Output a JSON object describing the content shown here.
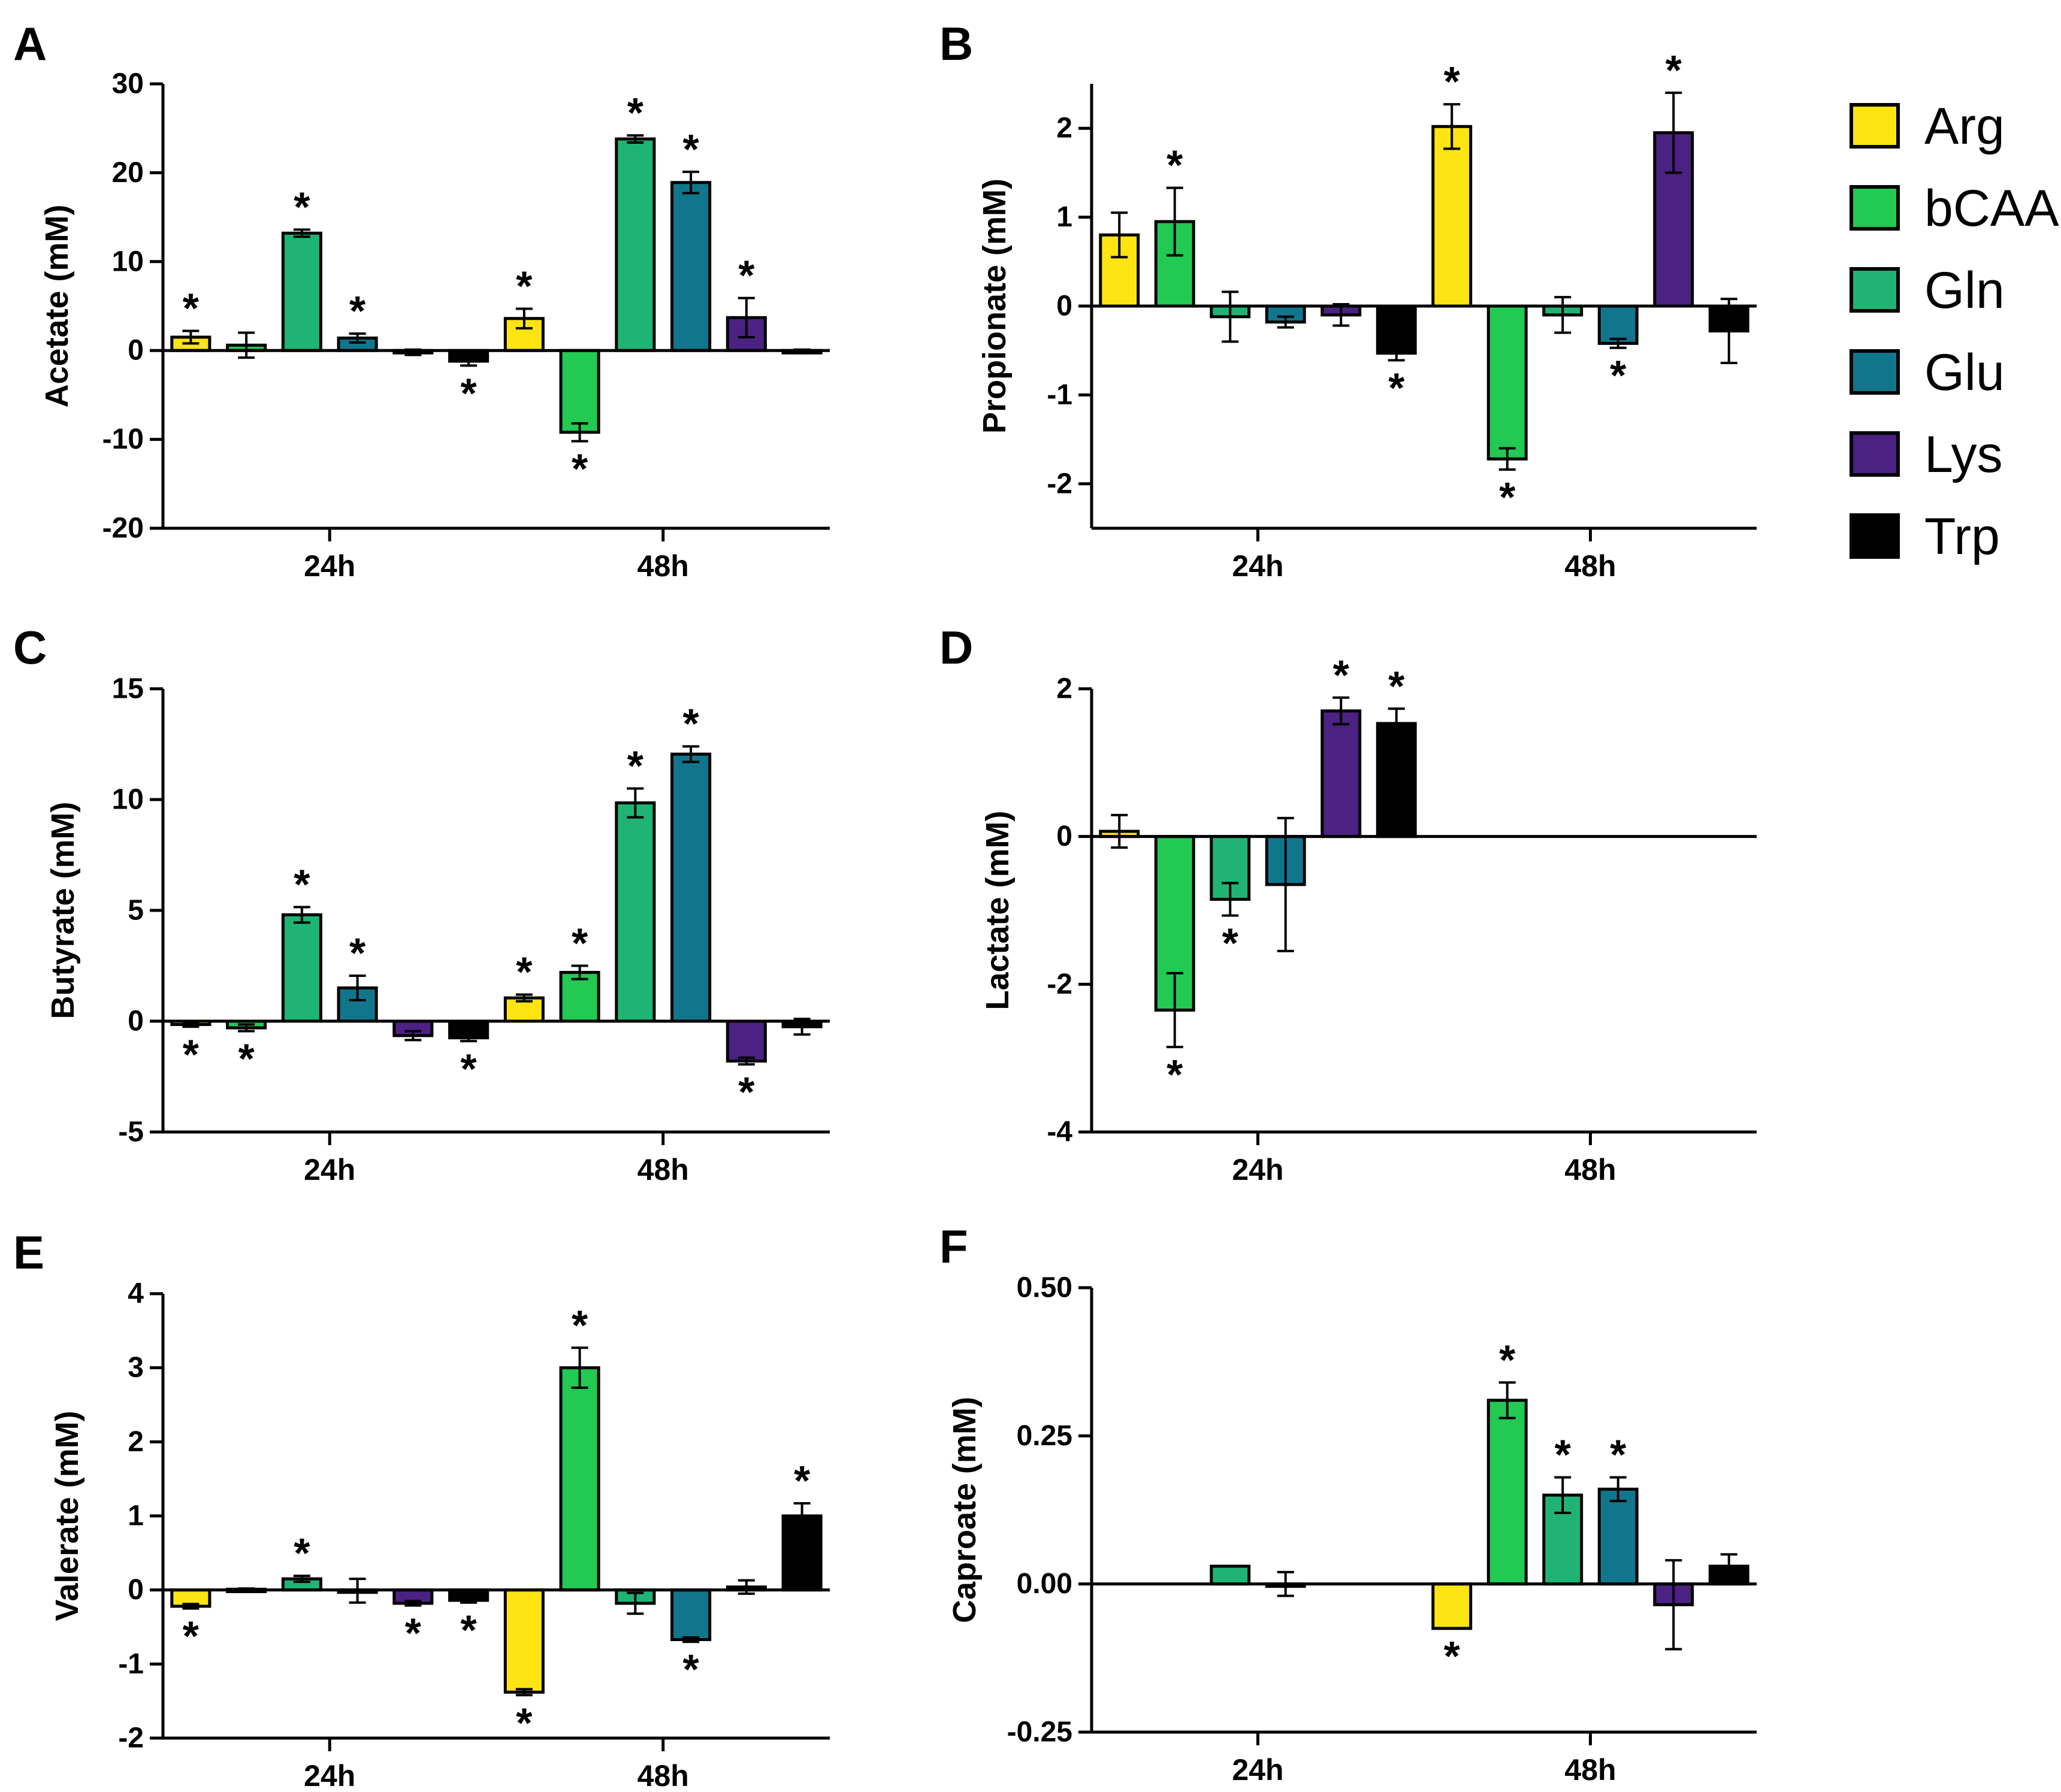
{
  "legend": [
    {
      "name": "Arg",
      "color": "#ffe414"
    },
    {
      "name": "bCAA",
      "color": "#22c953"
    },
    {
      "name": "Gln",
      "color": "#1fb474"
    },
    {
      "name": "Glu",
      "color": "#11768c"
    },
    {
      "name": "Lys",
      "color": "#4b2182"
    },
    {
      "name": "Trp",
      "color": "#000000"
    }
  ],
  "chart_data": [
    {
      "id": "A",
      "letter": "A",
      "type": "bar",
      "ylabel": "Acetate (mM)",
      "ylim": [
        -20,
        30
      ],
      "ticks": [
        30,
        20,
        10,
        0,
        -10,
        -20
      ],
      "tick_labels": [
        "30",
        "20",
        "10",
        "0",
        "-10",
        "-20"
      ],
      "groups": [
        "24h",
        "48h"
      ],
      "bars": [
        {
          "group": 0,
          "series": "Arg",
          "value": 1.5,
          "err": 0.7,
          "sig": true
        },
        {
          "group": 0,
          "series": "bCAA",
          "value": 0.6,
          "err": 1.4,
          "sig": false
        },
        {
          "group": 0,
          "series": "Gln",
          "value": 13.2,
          "err": 0.4,
          "sig": true
        },
        {
          "group": 0,
          "series": "Glu",
          "value": 1.4,
          "err": 0.5,
          "sig": true
        },
        {
          "group": 0,
          "series": "Lys",
          "value": -0.2,
          "err": 0.3,
          "sig": false
        },
        {
          "group": 0,
          "series": "Trp",
          "value": -1.2,
          "err": 0.5,
          "sig": true
        },
        {
          "group": 1,
          "series": "Arg",
          "value": 3.6,
          "err": 1.1,
          "sig": true
        },
        {
          "group": 1,
          "series": "bCAA",
          "value": -9.2,
          "err": 1.0,
          "sig": true
        },
        {
          "group": 1,
          "series": "Gln",
          "value": 23.8,
          "err": 0.4,
          "sig": true
        },
        {
          "group": 1,
          "series": "Glu",
          "value": 18.9,
          "err": 1.2,
          "sig": true
        },
        {
          "group": 1,
          "series": "Lys",
          "value": 3.7,
          "err": 2.2,
          "sig": true
        },
        {
          "group": 1,
          "series": "Trp",
          "value": -0.1,
          "err": 0.2,
          "sig": false
        }
      ]
    },
    {
      "id": "B",
      "letter": "B",
      "type": "bar",
      "ylabel": "Propionate (mM)",
      "ylim": [
        -2.5,
        2.5
      ],
      "ticks": [
        2,
        1,
        0,
        -1,
        -2
      ],
      "tick_labels": [
        "2",
        "1",
        "0",
        "-1",
        "-2"
      ],
      "groups": [
        "24h",
        "48h"
      ],
      "bars": [
        {
          "group": 0,
          "series": "Arg",
          "value": 0.8,
          "err": 0.25,
          "sig": false
        },
        {
          "group": 0,
          "series": "bCAA",
          "value": 0.95,
          "err": 0.38,
          "sig": true
        },
        {
          "group": 0,
          "series": "Gln",
          "value": -0.12,
          "err": 0.28,
          "sig": false
        },
        {
          "group": 0,
          "series": "Glu",
          "value": -0.18,
          "err": 0.06,
          "sig": false
        },
        {
          "group": 0,
          "series": "Lys",
          "value": -0.1,
          "err": 0.12,
          "sig": false
        },
        {
          "group": 0,
          "series": "Trp",
          "value": -0.53,
          "err": 0.08,
          "sig": true
        },
        {
          "group": 1,
          "series": "Arg",
          "value": 2.02,
          "err": 0.25,
          "sig": true
        },
        {
          "group": 1,
          "series": "bCAA",
          "value": -1.72,
          "err": 0.12,
          "sig": true
        },
        {
          "group": 1,
          "series": "Gln",
          "value": -0.1,
          "err": 0.2,
          "sig": false
        },
        {
          "group": 1,
          "series": "Glu",
          "value": -0.42,
          "err": 0.05,
          "sig": true
        },
        {
          "group": 1,
          "series": "Lys",
          "value": 1.95,
          "err": 0.45,
          "sig": true
        },
        {
          "group": 1,
          "series": "Trp",
          "value": -0.28,
          "err": 0.36,
          "sig": false
        }
      ]
    },
    {
      "id": "C",
      "letter": "C",
      "type": "bar",
      "ylabel": "Butyrate (mM)",
      "ylim": [
        -5,
        15
      ],
      "ticks": [
        15,
        10,
        5,
        0,
        -5
      ],
      "tick_labels": [
        "15",
        "10",
        "5",
        "0",
        "-5"
      ],
      "groups": [
        "24h",
        "48h"
      ],
      "bars": [
        {
          "group": 0,
          "series": "Arg",
          "value": -0.15,
          "err": 0.1,
          "sig": true
        },
        {
          "group": 0,
          "series": "bCAA",
          "value": -0.3,
          "err": 0.15,
          "sig": true
        },
        {
          "group": 0,
          "series": "Gln",
          "value": 4.8,
          "err": 0.35,
          "sig": true
        },
        {
          "group": 0,
          "series": "Glu",
          "value": 1.5,
          "err": 0.55,
          "sig": true
        },
        {
          "group": 0,
          "series": "Lys",
          "value": -0.65,
          "err": 0.2,
          "sig": false
        },
        {
          "group": 0,
          "series": "Trp",
          "value": -0.75,
          "err": 0.15,
          "sig": true
        },
        {
          "group": 1,
          "series": "Arg",
          "value": 1.05,
          "err": 0.15,
          "sig": true
        },
        {
          "group": 1,
          "series": "bCAA",
          "value": 2.2,
          "err": 0.3,
          "sig": true
        },
        {
          "group": 1,
          "series": "Gln",
          "value": 9.85,
          "err": 0.65,
          "sig": true
        },
        {
          "group": 1,
          "series": "Glu",
          "value": 12.05,
          "err": 0.35,
          "sig": true
        },
        {
          "group": 1,
          "series": "Lys",
          "value": -1.8,
          "err": 0.15,
          "sig": true
        },
        {
          "group": 1,
          "series": "Trp",
          "value": -0.25,
          "err": 0.35,
          "sig": false
        }
      ]
    },
    {
      "id": "D",
      "letter": "D",
      "type": "bar",
      "ylabel": "Lactate (mM)",
      "ylim": [
        -4,
        2
      ],
      "ticks": [
        2,
        0,
        -2,
        -4
      ],
      "tick_labels": [
        "2",
        "0",
        "-2",
        "-4"
      ],
      "groups": [
        "24h",
        "48h"
      ],
      "bars": [
        {
          "group": 0,
          "series": "Arg",
          "value": 0.07,
          "err": 0.22,
          "sig": false
        },
        {
          "group": 0,
          "series": "bCAA",
          "value": -2.35,
          "err": 0.5,
          "sig": true
        },
        {
          "group": 0,
          "series": "Gln",
          "value": -0.85,
          "err": 0.22,
          "sig": true
        },
        {
          "group": 0,
          "series": "Glu",
          "value": -0.65,
          "err": 0.9,
          "sig": false
        },
        {
          "group": 0,
          "series": "Lys",
          "value": 1.7,
          "err": 0.18,
          "sig": true
        },
        {
          "group": 0,
          "series": "Trp",
          "value": 1.53,
          "err": 0.2,
          "sig": true
        }
      ]
    },
    {
      "id": "E",
      "letter": "E",
      "type": "bar",
      "ylabel": "Valerate (mM)",
      "ylim": [
        -2,
        4
      ],
      "ticks": [
        4,
        3,
        2,
        1,
        0,
        -1,
        -2
      ],
      "tick_labels": [
        "4",
        "3",
        "2",
        "1",
        "0",
        "-1",
        "-2"
      ],
      "groups": [
        "24h",
        "48h"
      ],
      "bars": [
        {
          "group": 0,
          "series": "Arg",
          "value": -0.22,
          "err": 0.03,
          "sig": true
        },
        {
          "group": 0,
          "series": "bCAA",
          "value": 0.01,
          "err": 0.01,
          "sig": false
        },
        {
          "group": 0,
          "series": "Gln",
          "value": 0.15,
          "err": 0.04,
          "sig": true
        },
        {
          "group": 0,
          "series": "Glu",
          "value": -0.01,
          "err": 0.16,
          "sig": false
        },
        {
          "group": 0,
          "series": "Lys",
          "value": -0.18,
          "err": 0.03,
          "sig": true
        },
        {
          "group": 0,
          "series": "Trp",
          "value": -0.14,
          "err": 0.03,
          "sig": true
        },
        {
          "group": 1,
          "series": "Arg",
          "value": -1.38,
          "err": 0.04,
          "sig": true
        },
        {
          "group": 1,
          "series": "bCAA",
          "value": 3.0,
          "err": 0.27,
          "sig": true
        },
        {
          "group": 1,
          "series": "Gln",
          "value": -0.18,
          "err": 0.14,
          "sig": false
        },
        {
          "group": 1,
          "series": "Glu",
          "value": -0.67,
          "err": 0.03,
          "sig": true
        },
        {
          "group": 1,
          "series": "Lys",
          "value": 0.04,
          "err": 0.09,
          "sig": false
        },
        {
          "group": 1,
          "series": "Trp",
          "value": 1.0,
          "err": 0.17,
          "sig": true
        }
      ]
    },
    {
      "id": "F",
      "letter": "F",
      "type": "bar",
      "ylabel": "Caproate (mM)",
      "ylim": [
        -0.25,
        0.5
      ],
      "ticks": [
        0.5,
        0.25,
        0,
        -0.25
      ],
      "tick_labels": [
        "0.50",
        "0.25",
        "0.00",
        "-0.25"
      ],
      "groups": [
        "24h",
        "48h"
      ],
      "bars": [
        {
          "group": 0,
          "series": "Gln",
          "value": 0.03,
          "err": 0.0,
          "sig": false
        },
        {
          "group": 0,
          "series": "Glu",
          "value": 0.0,
          "err": 0.02,
          "sig": false
        },
        {
          "group": 1,
          "series": "Arg",
          "value": -0.075,
          "err": 0.0,
          "sig": true
        },
        {
          "group": 1,
          "series": "bCAA",
          "value": 0.31,
          "err": 0.03,
          "sig": true
        },
        {
          "group": 1,
          "series": "Gln",
          "value": 0.15,
          "err": 0.03,
          "sig": true
        },
        {
          "group": 1,
          "series": "Glu",
          "value": 0.16,
          "err": 0.02,
          "sig": true
        },
        {
          "group": 1,
          "series": "Lys",
          "value": -0.035,
          "err": 0.075,
          "sig": false
        },
        {
          "group": 1,
          "series": "Trp",
          "value": 0.03,
          "err": 0.02,
          "sig": false
        }
      ]
    }
  ]
}
